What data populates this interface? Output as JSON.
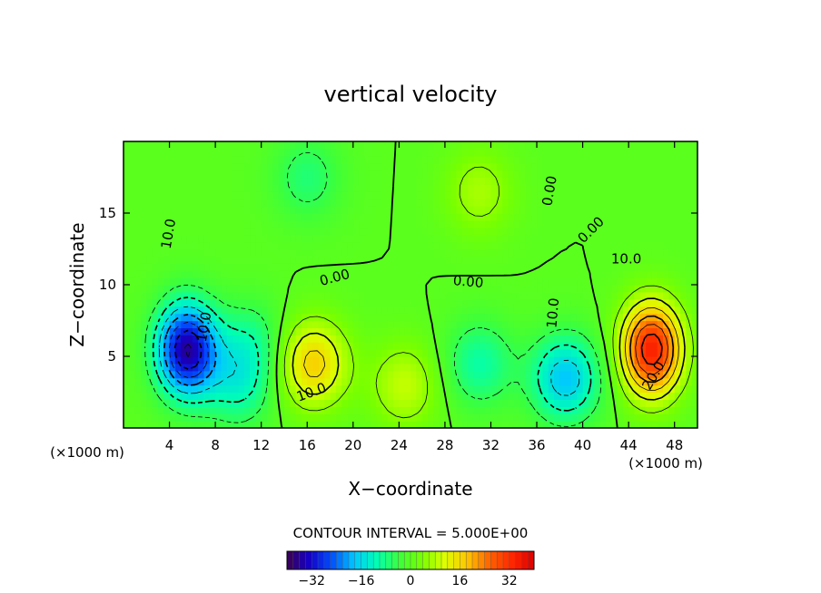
{
  "chart_data": {
    "type": "heatmap",
    "title": "vertical velocity",
    "xlabel": "X−coordinate",
    "ylabel": "Z−coordinate",
    "x_unit": "(×1000 m)",
    "xlim": [
      0,
      50
    ],
    "ylim": [
      0,
      20
    ],
    "x_ticks": [
      "4",
      "8",
      "12",
      "16",
      "20",
      "24",
      "28",
      "32",
      "36",
      "40",
      "44",
      "48"
    ],
    "y_ticks": [
      "5",
      "10",
      "15"
    ],
    "contour_interval_text": "CONTOUR INTERVAL = 5.000E+00",
    "contour_interval": 5.0,
    "value_range": [
      -40,
      40
    ],
    "colorbar_ticks": [
      "−32",
      "−16",
      "0",
      "16",
      "32"
    ],
    "colorbar_tick_values": [
      -32,
      -16,
      0,
      16,
      32
    ],
    "contour_labels": [
      {
        "text": "0.00",
        "x": 18.5,
        "y": 10.2,
        "rotate": -15
      },
      {
        "text": "0.00",
        "x": 30.0,
        "y": 9.9,
        "rotate": 5
      },
      {
        "text": "0.00",
        "x": 37.5,
        "y": 16.5,
        "rotate": -80
      },
      {
        "text": "0.00",
        "x": 41.0,
        "y": 13.6,
        "rotate": -45
      },
      {
        "text": "10.0",
        "x": 43.8,
        "y": 11.5,
        "rotate": 0
      },
      {
        "text": "10.0",
        "x": 37.8,
        "y": 8.0,
        "rotate": -85
      },
      {
        "text": "10.0",
        "x": 16.5,
        "y": 2.2,
        "rotate": -20
      },
      {
        "text": "20.0",
        "x": 46.5,
        "y": 3.5,
        "rotate": -60
      },
      {
        "text": "10.0",
        "x": 7.4,
        "y": 7.0,
        "rotate": -80
      },
      {
        "text": "10.0",
        "x": 4.3,
        "y": 13.5,
        "rotate": -80
      }
    ],
    "features": [
      {
        "name": "downdraft",
        "x": 5.5,
        "y": 5.5,
        "peak": -35
      },
      {
        "name": "updraft",
        "x": 46.0,
        "y": 5.5,
        "peak": 34
      },
      {
        "name": "updraft",
        "x": 16.5,
        "y": 4.5,
        "peak": 17
      },
      {
        "name": "downdraft",
        "x": 38.5,
        "y": 3.5,
        "peak": -18
      },
      {
        "name": "updraft",
        "x": 24.5,
        "y": 3.0,
        "peak": 9
      },
      {
        "name": "downdraft",
        "x": 31.0,
        "y": 4.5,
        "peak": -10
      },
      {
        "name": "downdraft",
        "x": 10.0,
        "y": 3.0,
        "peak": -10
      },
      {
        "name": "downdraft",
        "x": 16.0,
        "y": 17.5,
        "peak": -7
      },
      {
        "name": "updraft",
        "x": 31.0,
        "y": 16.5,
        "peak": 7
      },
      {
        "name": "downdraft",
        "x": 11.0,
        "y": 6.0,
        "peak": -8
      }
    ],
    "grid": false,
    "legend": "bottom",
    "colors": {
      "scale": [
        "#3c0050",
        "#1400c8",
        "#0050ff",
        "#00c8ff",
        "#00ffb4",
        "#3cff3c",
        "#78ff00",
        "#dcff00",
        "#ffc800",
        "#ff6400",
        "#ff2800",
        "#dc0000"
      ],
      "contour_line": "#000000"
    }
  }
}
